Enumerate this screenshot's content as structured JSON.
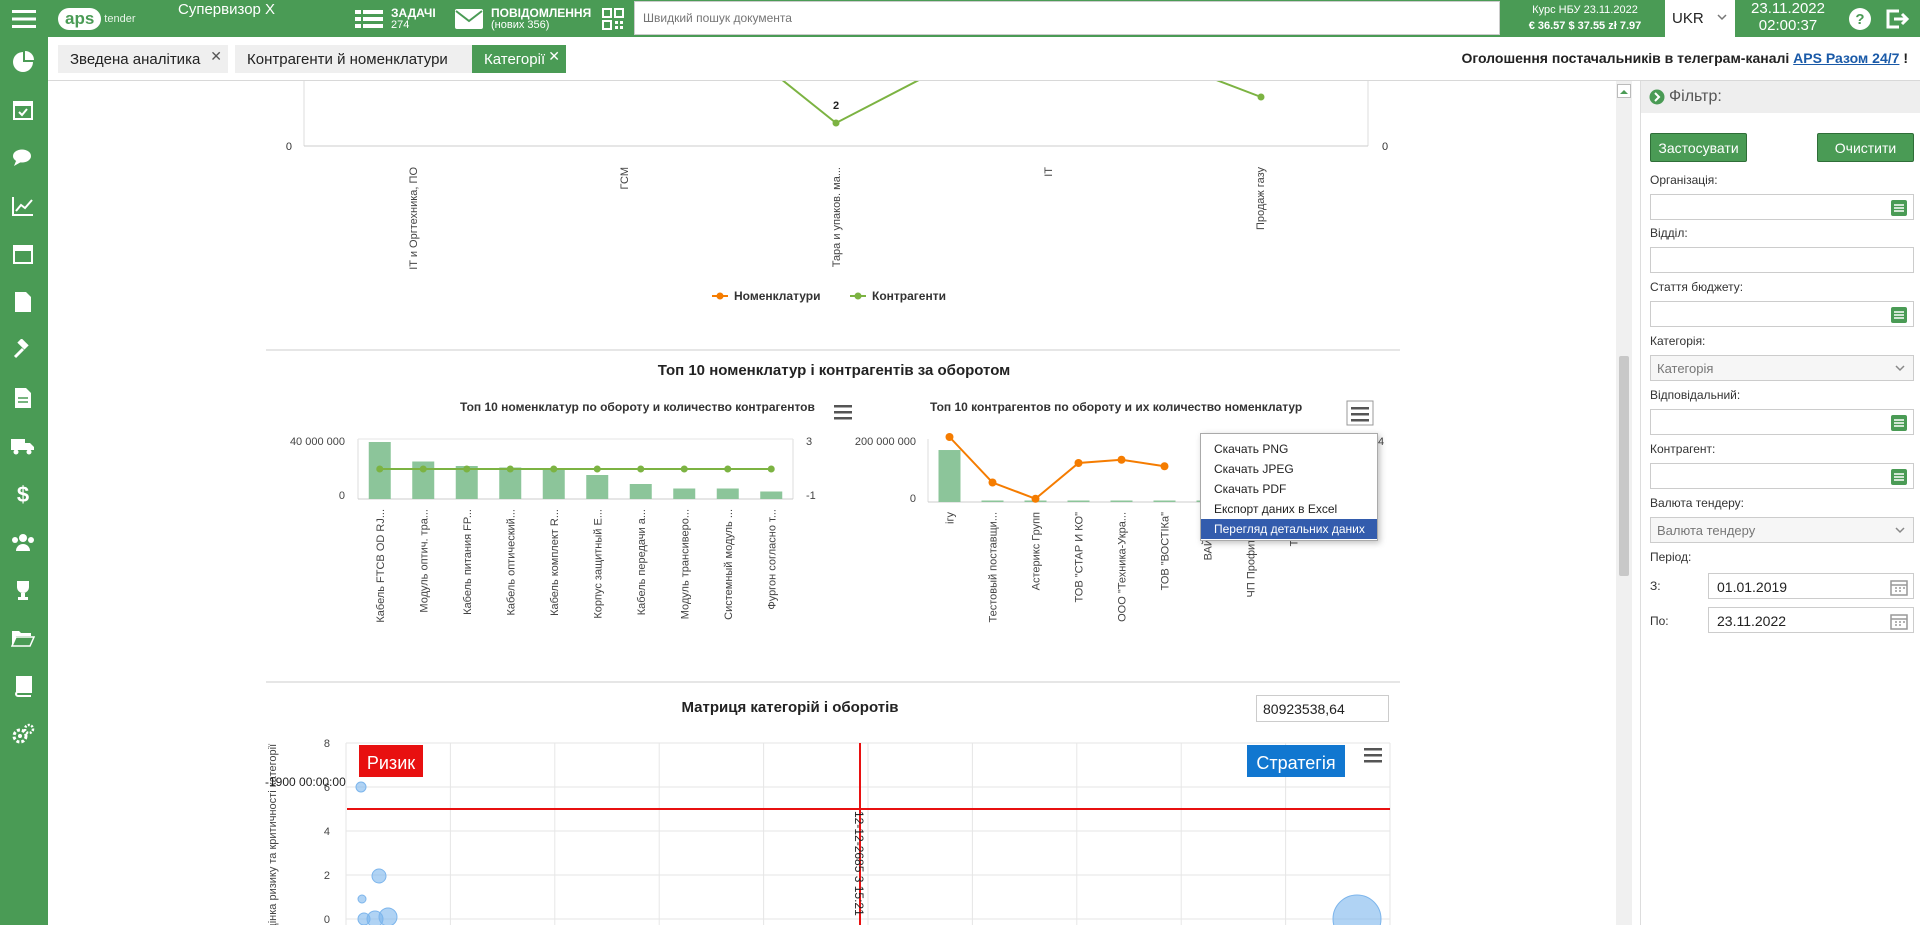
{
  "header": {
    "user": "Супервизор X",
    "tasks_label": "ЗАДАЧІ",
    "tasks_count": "274",
    "messages_label": "ПОВІДОМЛЕННЯ",
    "messages_count": "(нових 356)",
    "search_placeholder": "Швидкий пошук документа",
    "rates_title": "Курс НБУ 23.11.2022",
    "rates_values": "€ 36.57  $ 37.55  zł 7.97",
    "language": "UKR",
    "date": "23.11.2022",
    "time": "02:00:37",
    "logo_text": "aps",
    "logo_sub": "tender"
  },
  "tabs": [
    {
      "label": "Зведена аналітика"
    },
    {
      "label": "Контрагенти й номенклатури"
    },
    {
      "label": "Категорії"
    }
  ],
  "announcement": {
    "prefix": "Оголошення постачальників в телеграм-каналі ",
    "link": "APS Разом 24/7",
    "suffix": " !"
  },
  "filter": {
    "title": "Фільтр:",
    "apply": "Застосувати",
    "clear": "Очистити",
    "labels": {
      "org": "Організація:",
      "dept": "Відділ:",
      "budget": "Стаття бюджету:",
      "category": "Категорія:",
      "responsible": "Відповідальний:",
      "counterparty": "Контрагент:",
      "currency": "Валюта тендеру:",
      "period": "Період:",
      "from": "З:",
      "to": "По:"
    },
    "category_placeholder": "Категорія",
    "currency_placeholder": "Валюта тендеру",
    "from_value": "01.01.2019",
    "to_value": "23.11.2022"
  },
  "top_chart": {
    "legend": [
      "Номенклатури",
      "Контрагенти"
    ],
    "y_left": "0",
    "y_right": "0",
    "point_label": "2",
    "colors": {
      "nomen": "#f57c00",
      "contr": "#7cb342"
    }
  },
  "section_top10": {
    "title": "Топ 10 номенклатур і контрагентів за оборотом"
  },
  "matrix": {
    "title": "Матриця категорій і оборотів",
    "total": "80923538,64",
    "risk_label": "Ризик",
    "strategy_label": "Стратегія",
    "ylabel": "Оцінка ризику та критичності категорії",
    "y_ticks": [
      "8",
      "6",
      "4",
      "2",
      "0"
    ],
    "annot_left": "-1900 00:00:00",
    "annot_vertical": "12-12-2685 3 15:21"
  },
  "export_menu": [
    "Скачать PNG",
    "Скачать JPEG",
    "Скачать PDF",
    "Експорт даних в Excel",
    "Перегляд детальних даних"
  ],
  "chart_data": [
    {
      "type": "line",
      "categories": [
        "IT и Оргтехника, ПО",
        "ГСМ",
        "Тара и упаков. ма...",
        "IT",
        "Продаж газу"
      ],
      "series": [
        {
          "name": "Номенклатури",
          "values": [
            null,
            null,
            null,
            null,
            null
          ]
        },
        {
          "name": "Контрагенти",
          "values": [
            null,
            null,
            2,
            null,
            null
          ]
        }
      ],
      "legend": "bottom",
      "yleft_min": 0,
      "yright_min": 0
    },
    {
      "type": "bar",
      "title": "Топ 10 номенклатур по обороту и количество контрагентов",
      "categories": [
        "Кабель FTCB OD RJ...",
        "Модуль оптич. тра...",
        "Кабель питания FP...",
        "Кабель оптический...",
        "Кабель комплект R...",
        "Корпус защитный E...",
        "Кабель передачи а...",
        "Модуль трансиверо...",
        "Системный модуль ...",
        "Фургон согласно т..."
      ],
      "series": [
        {
          "values": [
            38000000,
            25000000,
            22000000,
            21000000,
            20000000,
            16000000,
            10000000,
            7000000,
            7000000,
            5000000
          ]
        },
        {
          "values": [
            1,
            1,
            1,
            1,
            1,
            1,
            1,
            1,
            1,
            1
          ]
        }
      ],
      "y_left_ticks": [
        "40 000 000",
        "0"
      ],
      "y_right_ticks": [
        "3",
        "-1"
      ]
    },
    {
      "type": "bar",
      "title": "Топ 10 контрагентов по обороту и их количество номенклатур",
      "categories": [
        "ігу",
        "Тестовый поставщи...",
        "Астерикс Групп",
        "ТОВ \"СТАР И КО\"",
        "ООО \"Техника-Укра...",
        "ТОВ \"ВОСТІКа\"",
        "ВАЙЗ А...",
        "ЧП Профит-Эл...",
        "ТОВ ..."
      ],
      "series": [
        {
          "values": [
            165000000,
            2000000,
            1500000,
            1500000,
            1500000,
            1000000,
            1000000,
            1000000,
            1000000
          ]
        },
        {
          "values": [
            4,
            1.2,
            0.2,
            2.4,
            2.6,
            2.2,
            null,
            null,
            null
          ]
        }
      ],
      "y_left_ticks": [
        "200 000 000",
        "0"
      ],
      "y_right_ticks": [
        "4"
      ]
    },
    {
      "type": "scatter",
      "title": "Матриця категорій і оборотів",
      "y_ticks": [
        8,
        6,
        4,
        2,
        0
      ],
      "points": [
        {
          "x": 0,
          "y": 6
        },
        {
          "x": 0,
          "y": 1
        },
        {
          "x": 0.15,
          "y": 2
        },
        {
          "x": 0,
          "y": 0
        },
        {
          "x": 0.1,
          "y": 0
        },
        {
          "x": 0.2,
          "y": 0
        },
        {
          "x": 8,
          "y": 0
        }
      ]
    }
  ]
}
